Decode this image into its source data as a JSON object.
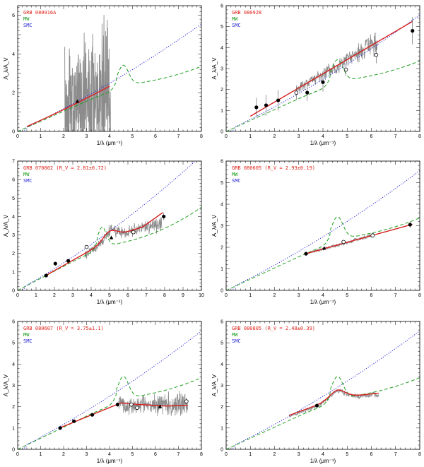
{
  "figure": {
    "description_panels": 6
  },
  "chart_data": [
    {
      "type": "line",
      "title": "GRB 080916A",
      "xlabel": "1/λ (μm⁻¹)",
      "ylabel": "A_λ/A_V",
      "xlim": [
        0,
        8
      ],
      "ylim": [
        0,
        6.5
      ],
      "xticks": [
        1,
        2,
        3,
        4,
        5,
        6,
        7,
        8
      ],
      "yticks": [
        0,
        2,
        4,
        6
      ],
      "legend": [
        "GRB 080916A",
        "MW",
        "SMC"
      ],
      "spectrum_x": [
        2.05,
        4.05
      ],
      "spectrum_noise": 2.8,
      "fit_x": [
        0.4,
        4.0
      ],
      "fit": "smc",
      "points": [
        {
          "x": 2.6,
          "y": 1.55,
          "marker": "triangle"
        }
      ]
    },
    {
      "type": "line",
      "title": "GRB 080928",
      "xlabel": "1/λ (μm⁻¹)",
      "ylabel": "A_λ/A_V",
      "xlim": [
        0,
        8
      ],
      "ylim": [
        0,
        6
      ],
      "xticks": [
        1,
        2,
        3,
        4,
        5,
        6,
        7,
        8
      ],
      "yticks": [
        0,
        1,
        2,
        3,
        4,
        5,
        6
      ],
      "legend": [
        "GRB 080928",
        "MW",
        "SMC"
      ],
      "spectrum_x": [
        2.9,
        6.25
      ],
      "spectrum_noise": 0.3,
      "fit_x": [
        1.0,
        7.7
      ],
      "fit": "line",
      "fit_slope": 0.675,
      "fit_intercept": 0.05,
      "points": [
        {
          "x": 1.25,
          "y": 1.15,
          "marker": "filled",
          "err": 0.45
        },
        {
          "x": 1.65,
          "y": 1.25,
          "marker": "filled",
          "err": 0.5
        },
        {
          "x": 2.15,
          "y": 1.48,
          "marker": "filled",
          "err": 0.5
        },
        {
          "x": 2.9,
          "y": 1.85,
          "marker": "open",
          "err": 0.35
        },
        {
          "x": 3.35,
          "y": 1.85,
          "marker": "filled",
          "err": 0.4
        },
        {
          "x": 4.0,
          "y": 2.35,
          "marker": "filled",
          "err": 0.45
        },
        {
          "x": 4.95,
          "y": 2.95,
          "marker": "open",
          "err": 0.3
        },
        {
          "x": 6.2,
          "y": 3.65,
          "marker": "open",
          "err": 0.4
        },
        {
          "x": 7.7,
          "y": 4.8,
          "marker": "filled",
          "err": 0.65
        }
      ]
    },
    {
      "type": "line",
      "title": "GRB 070802 (R_V = 2.81±0.72)",
      "xlabel": "1/λ (μm⁻¹)",
      "ylabel": "A_λ/A_V",
      "xlim": [
        0,
        10
      ],
      "ylim": [
        0,
        7
      ],
      "xticks": [
        1,
        2,
        3,
        4,
        5,
        6,
        7,
        8,
        9,
        10
      ],
      "yticks": [
        0,
        1,
        2,
        3,
        4,
        5,
        6,
        7
      ],
      "legend": [
        "GRB 070802 (R_V = 2.81±0.72)",
        "MW",
        "SMC"
      ],
      "spectrum_x": [
        3.65,
        7.85
      ],
      "spectrum_noise": 0.25,
      "fit_x": [
        1.5,
        7.9
      ],
      "fit": "bump",
      "bump_x": 5.0,
      "bump_h": 0.5,
      "points": [
        {
          "x": 1.55,
          "y": 0.8,
          "marker": "filled",
          "err": 0.05
        },
        {
          "x": 2.05,
          "y": 1.45,
          "marker": "filled",
          "err": 0.1
        },
        {
          "x": 2.75,
          "y": 1.6,
          "marker": "filled",
          "err": 0.08
        },
        {
          "x": 3.75,
          "y": 2.35,
          "marker": "open",
          "err": 0.1
        },
        {
          "x": 5.1,
          "y": 2.85,
          "marker": "triangle",
          "err": 0.1
        },
        {
          "x": 6.3,
          "y": 3.15,
          "marker": "open",
          "err": 0.1
        },
        {
          "x": 7.95,
          "y": 4.0,
          "marker": "filled",
          "err": 0.2
        }
      ]
    },
    {
      "type": "line",
      "title": "GRB 080605 (R_V = 2.93±0.19)",
      "xlabel": "1/λ (μm⁻¹)",
      "ylabel": "A_λ/A_V",
      "xlim": [
        0,
        8
      ],
      "ylim": [
        0,
        6
      ],
      "xticks": [
        1,
        2,
        3,
        4,
        5,
        6,
        7,
        8
      ],
      "yticks": [
        0,
        1,
        2,
        3,
        4,
        5,
        6
      ],
      "legend": [
        "GRB 080605 (R_V = 2.93±0.19)",
        "MW",
        "SMC"
      ],
      "spectrum_x": [
        3.4,
        6.1
      ],
      "spectrum_noise": 0.06,
      "fit_x": [
        3.3,
        7.7
      ],
      "fit": "line",
      "fit_slope": 0.31,
      "fit_intercept": 0.68,
      "points": [
        {
          "x": 3.3,
          "y": 1.7,
          "marker": "filled",
          "err": 0.05
        },
        {
          "x": 4.05,
          "y": 1.95,
          "marker": "triangle",
          "err": 0.06
        },
        {
          "x": 4.85,
          "y": 2.25,
          "marker": "open",
          "err": 0.08
        },
        {
          "x": 6.05,
          "y": 2.55,
          "marker": "open",
          "err": 0.1
        },
        {
          "x": 7.6,
          "y": 3.05,
          "marker": "filled",
          "err": 0.15
        }
      ]
    },
    {
      "type": "line",
      "title": "GRB 080607 (R_V = 3.75±1.1)",
      "xlabel": "1/λ (μm⁻¹)",
      "ylabel": "A_λ/A_V",
      "xlim": [
        0,
        8
      ],
      "ylim": [
        0,
        6
      ],
      "xticks": [
        1,
        2,
        3,
        4,
        5,
        6,
        7,
        8
      ],
      "yticks": [
        0,
        1,
        2,
        3,
        4,
        5,
        6
      ],
      "legend": [
        "GRB 080607 (R_V = 3.75±1.1)",
        "MW",
        "SMC"
      ],
      "spectrum_x": [
        4.4,
        7.4
      ],
      "spectrum_noise": 0.35,
      "fit_x": [
        1.85,
        7.4
      ],
      "fit": "bump",
      "bump_x": 4.55,
      "bump_h": 0.0,
      "points": [
        {
          "x": 1.85,
          "y": 1.0,
          "marker": "filled",
          "err": 0.05
        },
        {
          "x": 2.45,
          "y": 1.32,
          "marker": "filled",
          "err": 0.05
        },
        {
          "x": 3.25,
          "y": 1.62,
          "marker": "filled",
          "err": 0.05
        },
        {
          "x": 4.35,
          "y": 2.1,
          "marker": "filled",
          "err": 0.1
        },
        {
          "x": 4.95,
          "y": 2.1,
          "marker": "open",
          "err": 0.1
        },
        {
          "x": 5.2,
          "y": 1.95,
          "marker": "open",
          "err": 0.1
        },
        {
          "x": 6.2,
          "y": 2.0,
          "marker": "triangle",
          "err": 0.1
        },
        {
          "x": 7.35,
          "y": 2.25,
          "marker": "open",
          "err": 0.15
        }
      ]
    },
    {
      "type": "line",
      "title": "GRB 080805 (R_V = 2.48±0.39)",
      "xlabel": "1/λ (μm⁻¹)",
      "ylabel": "A_λ/A_V",
      "xlim": [
        0,
        8
      ],
      "ylim": [
        0,
        6
      ],
      "xticks": [
        1,
        2,
        3,
        4,
        5,
        6,
        7,
        8
      ],
      "yticks": [
        0,
        1,
        2,
        3,
        4,
        5,
        6
      ],
      "legend": [
        "GRB 080805 (R_V = 2.48±0.39)",
        "MW",
        "SMC"
      ],
      "spectrum_x": [
        2.6,
        6.3
      ],
      "spectrum_noise": 0.08,
      "fit_x": [
        2.6,
        6.3
      ],
      "fit": "bump",
      "bump_x": 4.6,
      "bump_h": 0.35,
      "points": [
        {
          "x": 3.75,
          "y": 2.05,
          "marker": "filled",
          "err": 0.05
        }
      ]
    }
  ],
  "colors": {
    "title": "#e0241b",
    "mw": "#1f9e1f",
    "smc": "#2727d8",
    "fit": "#d81e1e",
    "spectrum": "#8c8c8c",
    "axis": "#000000"
  }
}
